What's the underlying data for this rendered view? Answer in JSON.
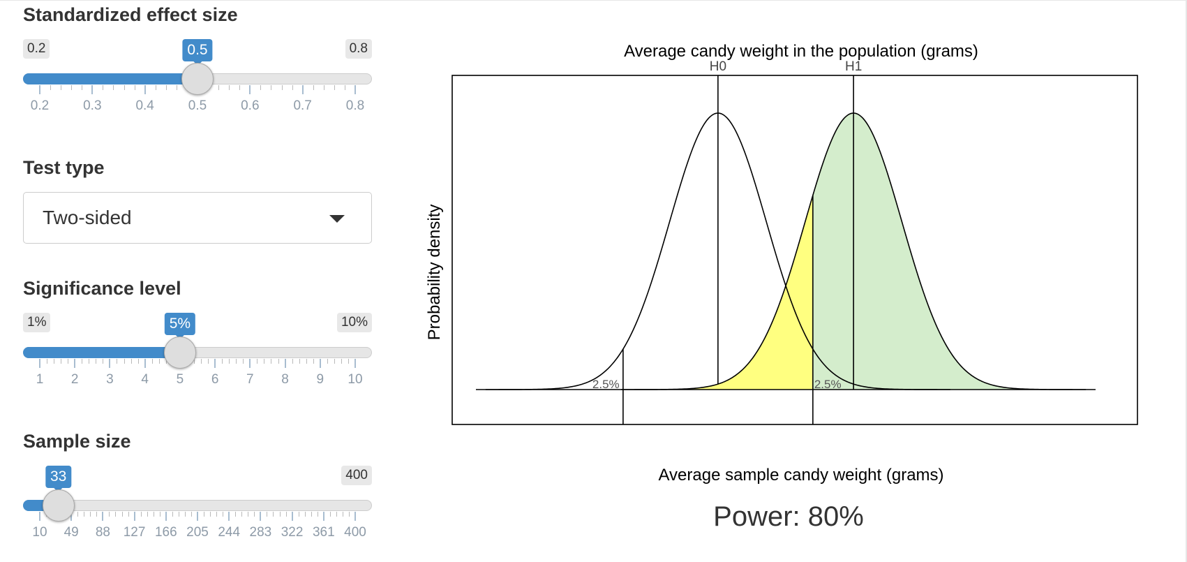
{
  "effect_size": {
    "label": "Standardized effect size",
    "min_label": "0.2",
    "max_label": "0.8",
    "value_label": "0.5",
    "min": 0.2,
    "max": 0.8,
    "value": 0.5,
    "ticks": [
      {
        "value": 0.2,
        "label": "0.2"
      },
      {
        "value": 0.3,
        "label": "0.3"
      },
      {
        "value": 0.4,
        "label": "0.4"
      },
      {
        "value": 0.5,
        "label": "0.5"
      },
      {
        "value": 0.6,
        "label": "0.6"
      },
      {
        "value": 0.7,
        "label": "0.7"
      },
      {
        "value": 0.8,
        "label": "0.8"
      }
    ]
  },
  "test_type": {
    "label": "Test type",
    "selected": "Two-sided"
  },
  "significance": {
    "label": "Significance level",
    "min_label": "1%",
    "max_label": "10%",
    "value_label": "5%",
    "min": 1,
    "max": 10,
    "value": 5,
    "ticks": [
      {
        "value": 1,
        "label": "1"
      },
      {
        "value": 2,
        "label": "2"
      },
      {
        "value": 3,
        "label": "3"
      },
      {
        "value": 4,
        "label": "4"
      },
      {
        "value": 5,
        "label": "5"
      },
      {
        "value": 6,
        "label": "6"
      },
      {
        "value": 7,
        "label": "7"
      },
      {
        "value": 8,
        "label": "8"
      },
      {
        "value": 9,
        "label": "9"
      },
      {
        "value": 10,
        "label": "10"
      }
    ]
  },
  "sample_size": {
    "label": "Sample size",
    "min_label": "10",
    "max_label": "400",
    "value_label": "33",
    "min": 10,
    "max": 400,
    "value": 33,
    "ticks": [
      {
        "value": 10,
        "label": "10"
      },
      {
        "value": 49,
        "label": "49"
      },
      {
        "value": 88,
        "label": "88"
      },
      {
        "value": 127,
        "label": "127"
      },
      {
        "value": 166,
        "label": "166"
      },
      {
        "value": 205,
        "label": "205"
      },
      {
        "value": 244,
        "label": "244"
      },
      {
        "value": 283,
        "label": "283"
      },
      {
        "value": 322,
        "label": "322"
      },
      {
        "value": 361,
        "label": "361"
      },
      {
        "value": 400,
        "label": "400"
      }
    ]
  },
  "chart_data": {
    "type": "area",
    "top_axis_label": "Average candy weight in the population (grams)",
    "xlabel": "Average sample candy weight (grams)",
    "ylabel": "Probability density",
    "h0_label": "H0",
    "h1_label": "H1",
    "h0_mean": 0,
    "h1_mean": 2.8,
    "sd": 1,
    "critical_values": [
      -1.96,
      1.96
    ],
    "tail_labels": [
      "2.5%",
      "2.5%"
    ],
    "region_colors": {
      "power": "#d4edcc",
      "beta": "#ffff80",
      "line": "#000000"
    }
  },
  "power": {
    "text": "Power: 80%"
  }
}
